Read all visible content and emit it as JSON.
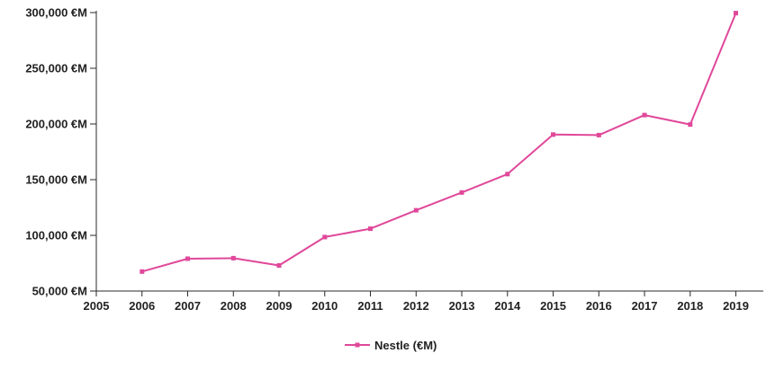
{
  "chart_data": {
    "type": "line",
    "title": "",
    "xlabel": "",
    "ylabel": "",
    "x": [
      2006,
      2007,
      2008,
      2009,
      2010,
      2011,
      2012,
      2013,
      2014,
      2015,
      2016,
      2017,
      2018,
      2019
    ],
    "x_ticks": [
      "2005",
      "2006",
      "2007",
      "2008",
      "2009",
      "2010",
      "2011",
      "2012",
      "2013",
      "2014",
      "2015",
      "2016",
      "2017",
      "2018",
      "2019"
    ],
    "y_ticks": [
      "50,000 €M",
      "100,000 €M",
      "150,000 €M",
      "200,000 €M",
      "250,000 €M",
      "300,000 €M"
    ],
    "xlim": [
      2005,
      2019.6
    ],
    "ylim": [
      50000,
      300000
    ],
    "series": [
      {
        "name": "Nestle (€M)",
        "color": "#e0489a",
        "values": [
          67500,
          79000,
          79500,
          73000,
          98500,
          106000,
          122500,
          138500,
          155000,
          190500,
          190000,
          208000,
          199500,
          299500
        ]
      }
    ],
    "legend": {
      "position": "bottom-center",
      "label": "Nestle (€M)"
    },
    "grid": false
  }
}
